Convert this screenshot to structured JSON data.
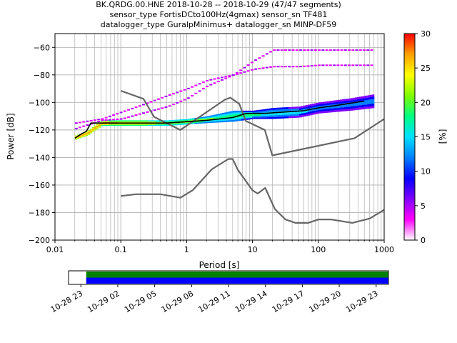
{
  "chart_data": {
    "type": "heatmap",
    "title_lines": [
      "BK.QRDG.00.HNE   2018-10-28 -- 2018-10-29  (47/47 segments)",
      "sensor_type FortisDCto100Hz(4gmax) sensor_sn TF481",
      "datalogger_type GuralpMinimus+ datalogger_sn MINP-DF59"
    ],
    "xlabel": "Period [s]",
    "ylabel": "Power [dB]",
    "x_scale": "log",
    "xlim": [
      0.01,
      1000
    ],
    "ylim": [
      -200,
      -50
    ],
    "x_tick_labels": [
      "0.01",
      "0.1",
      "1",
      "10",
      "100",
      "1000"
    ],
    "y_ticks": [
      -200,
      -180,
      -160,
      -140,
      -120,
      -100,
      -80,
      -60
    ],
    "grid": true,
    "colorbar": {
      "label": "[%]",
      "range": [
        0,
        30
      ],
      "ticks": [
        0,
        5,
        10,
        15,
        20,
        25,
        30
      ],
      "colormap": [
        "#ffffff",
        "#ff00ff",
        "#8000ff",
        "#0000ff",
        "#0080ff",
        "#00e0ff",
        "#00ff80",
        "#80ff00",
        "#ffff00",
        "#ffa000",
        "#ff0000"
      ]
    },
    "series": [
      {
        "name": "mode",
        "color": "#000000",
        "x": [
          0.02,
          0.025,
          0.03,
          0.035,
          0.05,
          0.1,
          0.5,
          1,
          2,
          5,
          8,
          15,
          30,
          60,
          100,
          200,
          500
        ],
        "y": [
          -126,
          -123,
          -121,
          -115,
          -115,
          -115,
          -115,
          -114,
          -113,
          -111,
          -108,
          -108,
          -107,
          -106,
          -104,
          -102,
          -99
        ]
      },
      {
        "name": "NHNM",
        "color": "#666666",
        "x": [
          0.1,
          0.22,
          0.32,
          0.8,
          3.8,
          4.6,
          6.3,
          7.9,
          15.4,
          20,
          354.8,
          1000
        ],
        "y": [
          -91.5,
          -97.4,
          -110.5,
          -120,
          -98,
          -96.5,
          -101,
          -113.5,
          -120,
          -138.5,
          -126,
          -112
        ]
      },
      {
        "name": "NLNM",
        "color": "#666666",
        "x": [
          0.1,
          0.17,
          0.4,
          0.8,
          1.24,
          2.4,
          4.3,
          5,
          6,
          10,
          12,
          15.6,
          21.9,
          31.6,
          45,
          70,
          101,
          154,
          328,
          600,
          1000
        ],
        "y": [
          -168,
          -166.7,
          -166.7,
          -169.2,
          -163.7,
          -148.6,
          -141.1,
          -141.1,
          -149,
          -163.8,
          -166.2,
          -162.1,
          -177.5,
          -185,
          -187.5,
          -187.5,
          -185,
          -185,
          -187.5,
          -184.4,
          -178
        ]
      }
    ],
    "density_band": {
      "x": [
        0.02,
        0.03,
        0.05,
        0.1,
        0.5,
        1,
        2,
        5,
        10,
        20,
        50,
        100,
        300,
        700
      ],
      "y_low": [
        -127,
        -124,
        -117,
        -117,
        -117,
        -116,
        -115,
        -114,
        -112,
        -112,
        -111,
        -108,
        -106,
        -104
      ],
      "y_high": [
        -124,
        -121,
        -113,
        -113,
        -113,
        -112,
        -110,
        -106,
        -106,
        -104,
        -103,
        -100,
        -97,
        -94
      ]
    },
    "outlier_traces": [
      {
        "x": [
          0.02,
          0.05,
          0.1,
          0.2,
          0.5,
          1,
          2,
          5,
          10,
          20,
          50,
          100,
          300,
          700
        ],
        "y": [
          -115,
          -112,
          -107,
          -102,
          -95,
          -90,
          -84,
          -80,
          -76,
          -74,
          -74,
          -73,
          -73,
          -73
        ]
      },
      {
        "x": [
          0.02,
          0.05,
          0.1,
          0.2,
          0.5,
          1,
          2,
          5,
          10,
          20,
          50,
          100,
          300,
          700
        ],
        "y": [
          -119,
          -113,
          -112,
          -108,
          -103,
          -97,
          -88,
          -80,
          -70,
          -62,
          -62,
          -62,
          -62,
          -62
        ]
      }
    ],
    "timeline": {
      "tick_labels": [
        "10-28 23",
        "10-29 02",
        "10-29 05",
        "10-29 08",
        "10-29 11",
        "10-29 14",
        "10-29 17",
        "10-29 20",
        "10-29 23"
      ],
      "range": [
        "10-28 22",
        "10-30 00"
      ],
      "coverage_start": "10-28 23:26",
      "coverage_end": "10-29 23:59",
      "bars": [
        {
          "name": "data",
          "color": "#008000"
        },
        {
          "name": "psd",
          "color": "#0000ff"
        }
      ]
    }
  }
}
